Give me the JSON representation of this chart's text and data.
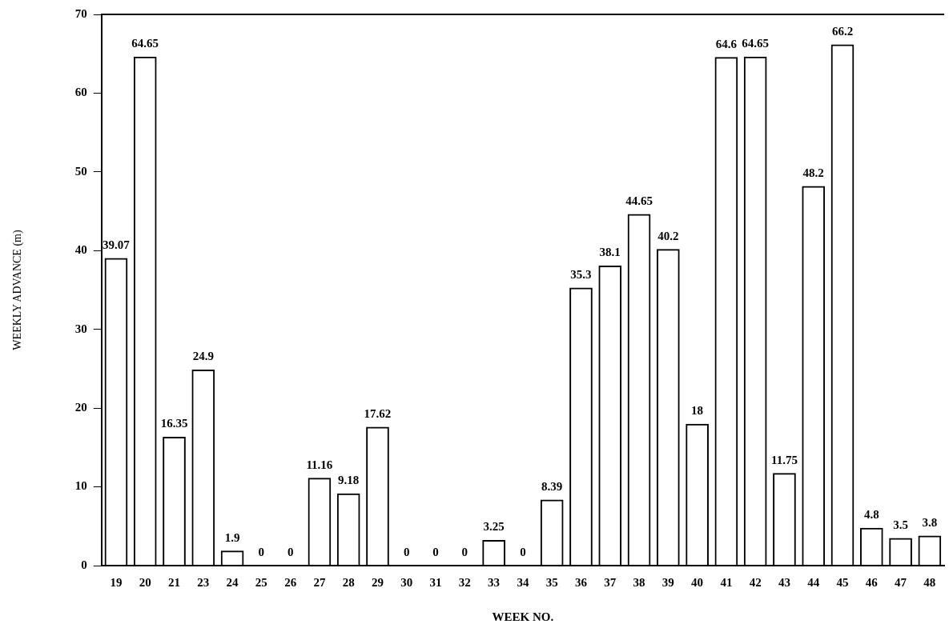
{
  "chart_data": {
    "type": "bar",
    "xlabel": "WEEK NO.",
    "ylabel": "WEEKLY ADVANCE (m)",
    "categories": [
      "19",
      "20",
      "21",
      "23",
      "24",
      "25",
      "26",
      "27",
      "28",
      "29",
      "30",
      "31",
      "32",
      "33",
      "34",
      "35",
      "36",
      "37",
      "38",
      "39",
      "40",
      "41",
      "42",
      "43",
      "44",
      "45",
      "46",
      "47",
      "48"
    ],
    "values": [
      39.07,
      64.65,
      16.35,
      24.9,
      1.9,
      0,
      0,
      11.16,
      9.18,
      17.62,
      0,
      0,
      0,
      3.25,
      0,
      8.39,
      35.3,
      38.1,
      44.65,
      40.2,
      18,
      64.6,
      64.65,
      11.75,
      48.2,
      66.2,
      4.8,
      3.5,
      3.8
    ],
    "color": "#000000",
    "ylim": [
      0,
      70
    ],
    "yticks": [
      0,
      10,
      20,
      30,
      40,
      50,
      60,
      70
    ],
    "grid": false,
    "legend": false,
    "data_labels": true
  }
}
